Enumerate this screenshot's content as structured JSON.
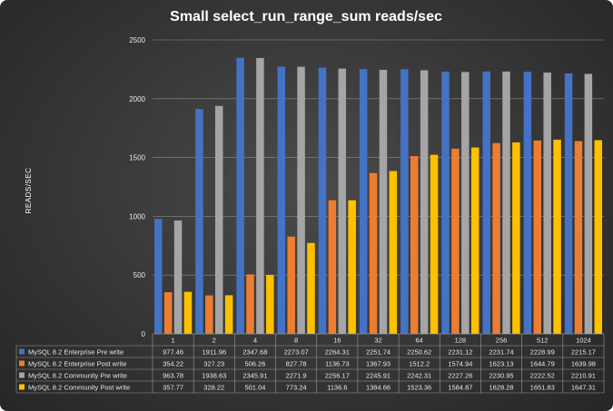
{
  "chart_data": {
    "type": "bar",
    "title": "Small select_run_range_sum   reads/sec",
    "ylabel": "READS/SEC",
    "xlabel": "",
    "ylim": [
      0,
      2500
    ],
    "yticks": [
      0,
      500,
      1000,
      1500,
      2000,
      2500
    ],
    "grid": true,
    "legend": "data-table-left",
    "categories": [
      "1",
      "2",
      "4",
      "8",
      "16",
      "32",
      "64",
      "128",
      "256",
      "512",
      "1024"
    ],
    "series": [
      {
        "name": "MySQL 8.2 Enterprise Pre write",
        "color": "#4472c4",
        "values": [
          977.46,
          1911.96,
          2347.68,
          2273.07,
          2264.31,
          2251.74,
          2250.62,
          2231.12,
          2231.74,
          2228.99,
          2215.17
        ],
        "labels": [
          "977.46",
          "1911.96",
          "2347.68",
          "2273.07",
          "2264.31",
          "2251.74",
          "2250.62",
          "2231.12",
          "2231.74",
          "2228.99",
          "2215.17"
        ]
      },
      {
        "name": "MySQL 8.2 Enterprise Post write",
        "color": "#ed7d31",
        "values": [
          354.22,
          327.23,
          506.26,
          827.78,
          1136.73,
          1367.93,
          1512.2,
          1574.94,
          1623.13,
          1644.79,
          1639.98
        ],
        "labels": [
          "354.22",
          "327.23",
          "506.26",
          "827.78",
          "1136.73",
          "1367.93",
          "1512.2",
          "1574.94",
          "1623.13",
          "1644.79",
          "1639.98"
        ]
      },
      {
        "name": "MySQL 8.2 Community Pre write",
        "color": "#a5a5a5",
        "values": [
          963.78,
          1938.63,
          2345.91,
          2271.9,
          2256.17,
          2245.91,
          2242.31,
          2227.26,
          2230.95,
          2222.52,
          2210.91
        ],
        "labels": [
          "963.78",
          "1938.63",
          "2345.91",
          "2271.9",
          "2256.17",
          "2245.91",
          "2242.31",
          "2227.26",
          "2230.95",
          "2222.52",
          "2210.91"
        ]
      },
      {
        "name": "MySQL 8.2 Community Post write",
        "color": "#ffc000",
        "values": [
          357.77,
          328.22,
          501.04,
          773.24,
          1136.6,
          1384.66,
          1523.36,
          1584.87,
          1628.28,
          1651.83,
          1647.31
        ],
        "labels": [
          "357.77",
          "328.22",
          "501.04",
          "773.24",
          "1136.6",
          "1384.66",
          "1523.36",
          "1584.87",
          "1628.28",
          "1651.83",
          "1647.31"
        ]
      }
    ]
  }
}
